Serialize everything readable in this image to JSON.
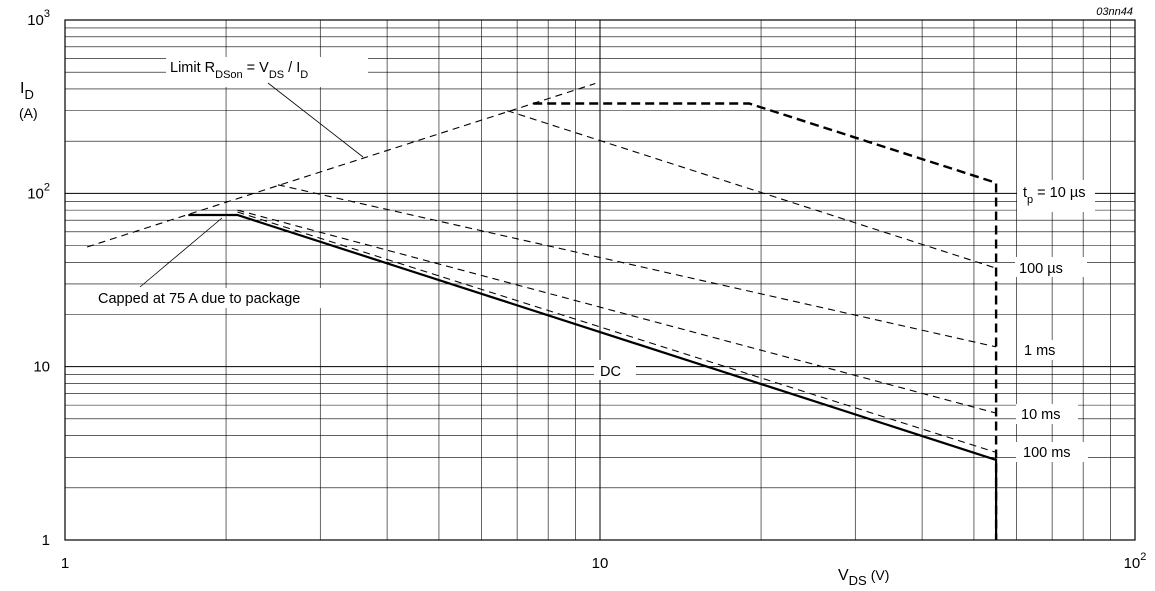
{
  "figure_code": "03nn44",
  "chart_data": {
    "type": "line",
    "x_scale": "log",
    "y_scale": "log",
    "xlim": [
      1,
      100
    ],
    "ylim": [
      1,
      1000
    ],
    "grid": true,
    "xlabel": {
      "main": "V",
      "sub": "DS",
      "unit": "(V)"
    },
    "ylabel": {
      "main": "I",
      "sub": "D",
      "unit": "(A)"
    },
    "x_ticks": [
      {
        "value": 1,
        "base": "1",
        "exp": ""
      },
      {
        "value": 10,
        "base": "10",
        "exp": ""
      },
      {
        "value": 100,
        "base": "10",
        "exp": "2"
      }
    ],
    "y_ticks": [
      {
        "value": 1,
        "base": "1",
        "exp": ""
      },
      {
        "value": 10,
        "base": "10",
        "exp": ""
      },
      {
        "value": 100,
        "base": "10",
        "exp": "2"
      },
      {
        "value": 1000,
        "base": "10",
        "exp": "3"
      }
    ],
    "series": [
      {
        "name": "Limit RDSon = VDS / ID",
        "style": "dashed",
        "points": [
          [
            1.1,
            49
          ],
          [
            9.8,
            430
          ]
        ]
      },
      {
        "name": "tp = 10 µs",
        "style": "bold-dashed",
        "points": [
          [
            7.5,
            330
          ],
          [
            19,
            330
          ],
          [
            55,
            115
          ],
          [
            55,
            1
          ]
        ]
      },
      {
        "name": "100 µs",
        "style": "dashed",
        "points": [
          [
            6.7,
            300
          ],
          [
            55,
            37
          ]
        ]
      },
      {
        "name": "1 ms",
        "style": "dashed",
        "points": [
          [
            2.5,
            112
          ],
          [
            55,
            13
          ]
        ]
      },
      {
        "name": "10 ms",
        "style": "dashed",
        "points": [
          [
            2.1,
            80
          ],
          [
            55,
            5.4
          ]
        ]
      },
      {
        "name": "100 ms",
        "style": "dashed",
        "points": [
          [
            2.1,
            78
          ],
          [
            55,
            3.2
          ]
        ]
      },
      {
        "name": "DC",
        "style": "solid",
        "points": [
          [
            1.7,
            75
          ],
          [
            2.1,
            75
          ],
          [
            55,
            2.9
          ],
          [
            55,
            1
          ]
        ]
      }
    ],
    "annotations": {
      "limit": {
        "pre": "Limit R",
        "sub1": "DSon",
        "mid": " = V",
        "sub2": "DS",
        "mid2": " / I",
        "sub3": "D"
      },
      "capped": "Capped at 75 A due to package",
      "dc": "DC",
      "tp10": {
        "pre": "t",
        "sub": "p",
        "post": " = 10 µs"
      },
      "t100us": "100 µs",
      "t1ms": "1 ms",
      "t10ms": "10 ms",
      "t100ms": "100 ms"
    }
  }
}
